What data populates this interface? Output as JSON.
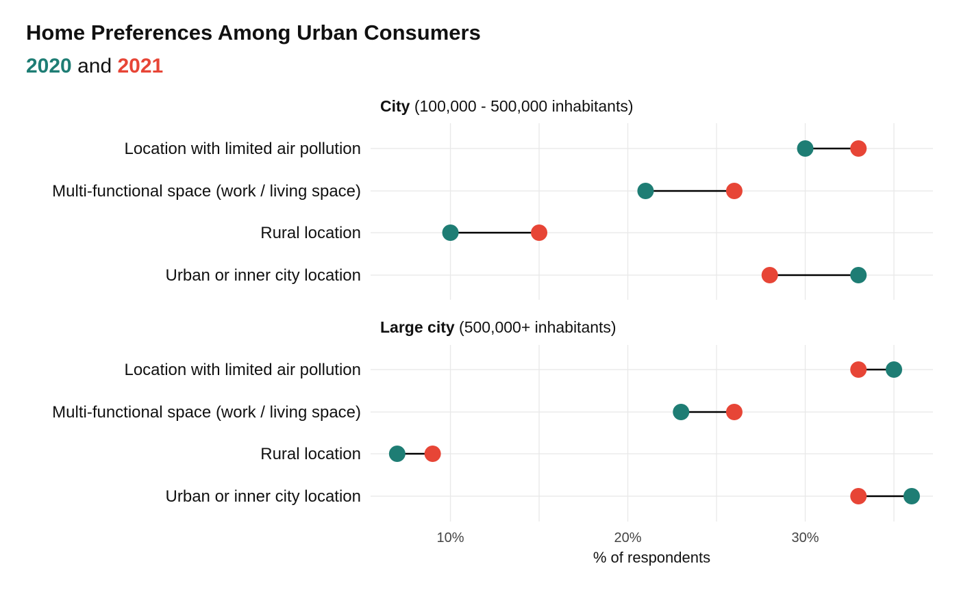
{
  "title": "Home Preferences Among Urban Consumers",
  "subtitle": {
    "year1": "2020",
    "joiner": "and",
    "year2": "2021"
  },
  "colors": {
    "y2020": "#1e7d74",
    "y2021": "#e74536",
    "connector": "#000000",
    "grid": "#e8e8e8",
    "text": "#111111",
    "tick_text": "#444444"
  },
  "chart_data": {
    "type": "dumbbell",
    "xlabel": "% of respondents",
    "xlim": [
      5.5,
      37.2
    ],
    "major_ticks": [
      10,
      20,
      30
    ],
    "tick_labels": [
      "10%",
      "20%",
      "30%"
    ],
    "minor_gridlines": [
      15,
      25,
      35
    ],
    "legend": "embedded in subtitle",
    "series": [
      {
        "name": "2020",
        "color": "#1e7d74"
      },
      {
        "name": "2021",
        "color": "#e74536"
      }
    ],
    "panels": [
      {
        "title_bold": "City",
        "title_rest": "(100,000 - 500,000 inhabitants)",
        "categories": [
          "Location with limited air pollution",
          "Multi-functional space (work / living space)",
          "Rural location",
          "Urban or inner city location"
        ],
        "values_2020": [
          30,
          21,
          10,
          33
        ],
        "values_2021": [
          33,
          26,
          15,
          28
        ]
      },
      {
        "title_bold": "Large city",
        "title_rest": "(500,000+ inhabitants)",
        "categories": [
          "Location with limited air pollution",
          "Multi-functional space (work / living space)",
          "Rural location",
          "Urban or inner city location"
        ],
        "values_2020": [
          35,
          23,
          7,
          36
        ],
        "values_2021": [
          33,
          26,
          9,
          33
        ]
      }
    ]
  }
}
